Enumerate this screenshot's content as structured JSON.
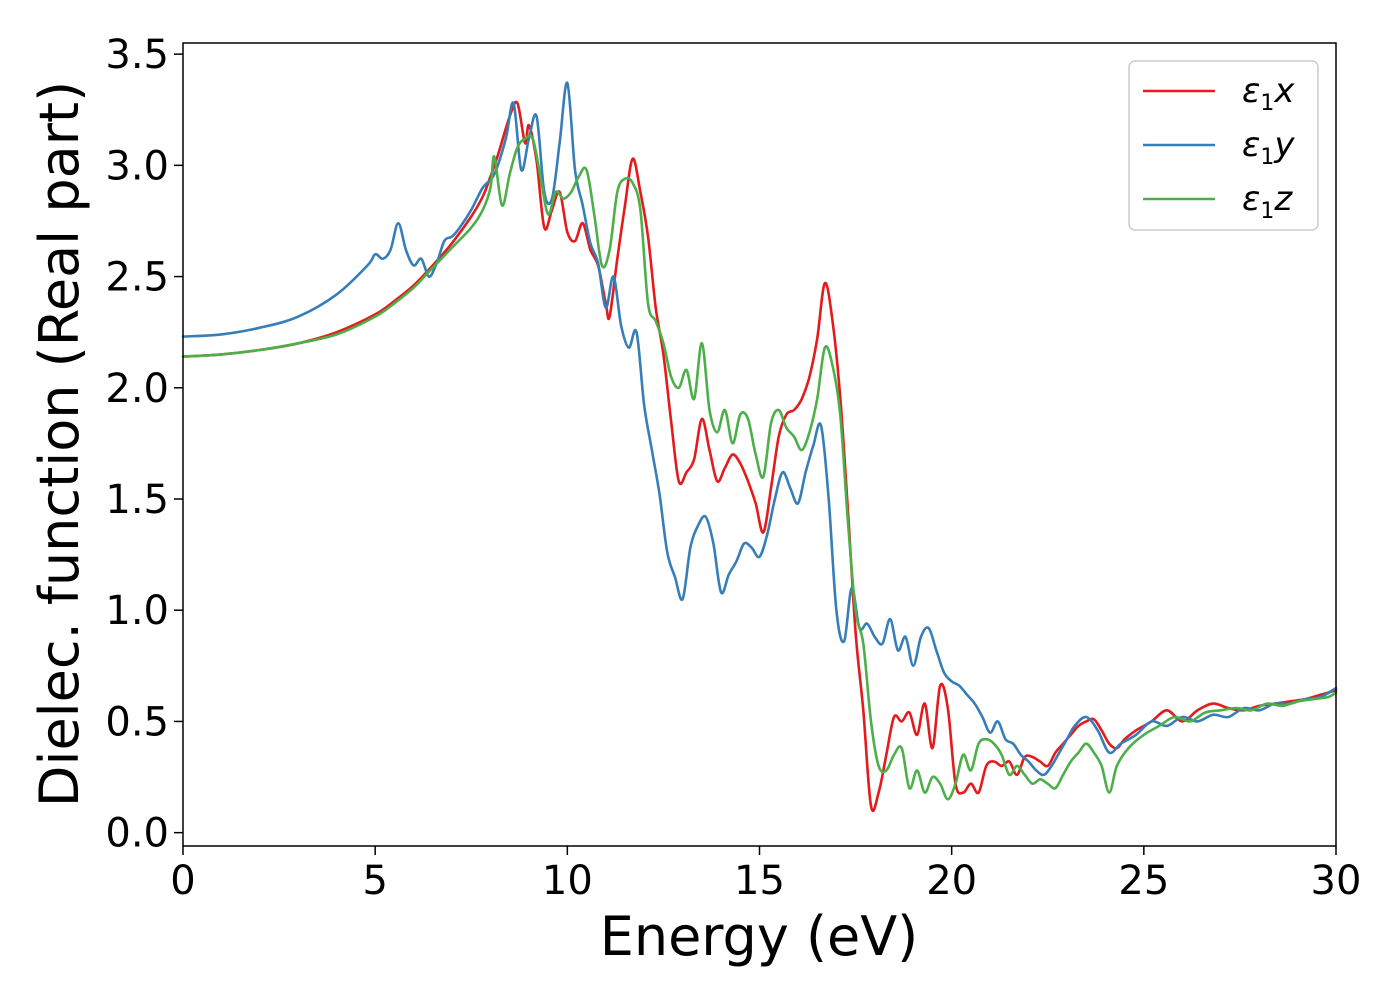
{
  "chart_data": {
    "type": "line",
    "title": "",
    "xlabel": "Energy (eV)",
    "ylabel": "Dielec. function (Real part)",
    "xlim": [
      0,
      30
    ],
    "ylim": [
      -0.06,
      3.55
    ],
    "xticks": [
      0,
      5,
      10,
      15,
      20,
      25,
      30
    ],
    "xtick_labels": [
      "0",
      "5",
      "10",
      "15",
      "20",
      "25",
      "30"
    ],
    "yticks": [
      0.0,
      0.5,
      1.0,
      1.5,
      2.0,
      2.5,
      3.0,
      3.5
    ],
    "ytick_labels": [
      "0.0",
      "0.5",
      "1.0",
      "1.5",
      "2.0",
      "2.5",
      "3.0",
      "3.5"
    ],
    "grid": false,
    "legend_position": "top-right",
    "series": [
      {
        "name": "x",
        "symbol": "ε",
        "subscript": "1",
        "color": "#e41a1c",
        "x": [
          0,
          1,
          2,
          3,
          4,
          5,
          5.5,
          6,
          6.5,
          7,
          7.5,
          7.8,
          8.0,
          8.2,
          8.5,
          8.7,
          8.9,
          9.0,
          9.2,
          9.4,
          9.6,
          9.8,
          10.0,
          10.2,
          10.4,
          10.6,
          10.8,
          11.0,
          11.1,
          11.3,
          11.5,
          11.7,
          11.9,
          12.1,
          12.3,
          12.5,
          12.7,
          12.9,
          13.1,
          13.3,
          13.5,
          13.7,
          13.9,
          14.1,
          14.3,
          14.5,
          14.7,
          14.9,
          15.1,
          15.3,
          15.5,
          15.7,
          15.9,
          16.1,
          16.3,
          16.5,
          16.7,
          16.9,
          17.1,
          17.3,
          17.5,
          17.7,
          17.9,
          18.1,
          18.3,
          18.5,
          18.7,
          18.9,
          19.1,
          19.3,
          19.5,
          19.7,
          19.9,
          20.1,
          20.3,
          20.5,
          20.7,
          20.9,
          21.1,
          21.3,
          21.5,
          21.7,
          21.9,
          22.1,
          22.3,
          22.5,
          22.7,
          22.9,
          23.1,
          23.3,
          23.5,
          23.7,
          23.9,
          24.1,
          24.3,
          24.5,
          24.8,
          25.2,
          25.6,
          26.0,
          26.4,
          26.8,
          27.2,
          27.6,
          28.0,
          28.4,
          28.8,
          29.2,
          29.6,
          30.0
        ],
        "y": [
          2.14,
          2.15,
          2.17,
          2.2,
          2.25,
          2.33,
          2.39,
          2.46,
          2.55,
          2.65,
          2.77,
          2.86,
          2.95,
          3.05,
          3.22,
          3.28,
          3.1,
          3.18,
          3.02,
          2.72,
          2.8,
          2.88,
          2.7,
          2.66,
          2.74,
          2.62,
          2.55,
          2.38,
          2.32,
          2.58,
          2.82,
          3.03,
          2.88,
          2.68,
          2.36,
          2.15,
          1.85,
          1.58,
          1.62,
          1.68,
          1.86,
          1.72,
          1.58,
          1.64,
          1.7,
          1.66,
          1.58,
          1.48,
          1.35,
          1.55,
          1.78,
          1.88,
          1.9,
          1.95,
          2.05,
          2.22,
          2.47,
          2.3,
          1.96,
          1.45,
          0.9,
          0.55,
          0.12,
          0.18,
          0.35,
          0.52,
          0.5,
          0.54,
          0.44,
          0.58,
          0.38,
          0.66,
          0.56,
          0.22,
          0.18,
          0.22,
          0.18,
          0.3,
          0.32,
          0.3,
          0.32,
          0.26,
          0.34,
          0.34,
          0.32,
          0.3,
          0.36,
          0.4,
          0.44,
          0.48,
          0.5,
          0.51,
          0.46,
          0.4,
          0.38,
          0.42,
          0.46,
          0.5,
          0.55,
          0.5,
          0.55,
          0.58,
          0.56,
          0.55,
          0.57,
          0.58,
          0.59,
          0.6,
          0.62,
          0.64
        ]
      },
      {
        "name": "y",
        "symbol": "ε",
        "subscript": "1",
        "color": "#377eb8",
        "x": [
          0,
          1,
          2,
          3,
          4,
          4.8,
          5.0,
          5.2,
          5.4,
          5.6,
          5.8,
          6.0,
          6.2,
          6.4,
          6.6,
          6.8,
          7.0,
          7.2,
          7.5,
          7.8,
          8.1,
          8.4,
          8.6,
          8.8,
          9.0,
          9.2,
          9.4,
          9.6,
          9.8,
          10.0,
          10.2,
          10.4,
          10.6,
          10.8,
          11.0,
          11.2,
          11.4,
          11.6,
          11.8,
          12.0,
          12.2,
          12.4,
          12.6,
          12.8,
          13.0,
          13.2,
          13.4,
          13.6,
          13.8,
          14.0,
          14.2,
          14.4,
          14.6,
          14.8,
          15.0,
          15.2,
          15.4,
          15.6,
          15.8,
          16.0,
          16.2,
          16.4,
          16.6,
          16.8,
          17.0,
          17.2,
          17.4,
          17.6,
          17.8,
          18.0,
          18.2,
          18.4,
          18.6,
          18.8,
          19.0,
          19.2,
          19.4,
          19.6,
          19.8,
          20.0,
          20.2,
          20.4,
          20.6,
          20.8,
          21.0,
          21.2,
          21.4,
          21.6,
          21.8,
          22.0,
          22.2,
          22.4,
          22.6,
          22.8,
          23.0,
          23.2,
          23.5,
          23.8,
          24.1,
          24.4,
          24.8,
          25.2,
          25.6,
          26.0,
          26.4,
          26.8,
          27.2,
          27.6,
          28.0,
          28.4,
          28.8,
          29.2,
          29.6,
          30.0
        ],
        "y": [
          2.23,
          2.24,
          2.27,
          2.32,
          2.42,
          2.55,
          2.6,
          2.58,
          2.62,
          2.74,
          2.62,
          2.55,
          2.58,
          2.5,
          2.56,
          2.66,
          2.68,
          2.72,
          2.8,
          2.9,
          2.96,
          3.12,
          3.28,
          2.98,
          3.12,
          3.22,
          2.88,
          2.85,
          3.1,
          3.37,
          2.98,
          2.82,
          2.65,
          2.56,
          2.36,
          2.5,
          2.28,
          2.18,
          2.25,
          1.92,
          1.72,
          1.52,
          1.26,
          1.15,
          1.05,
          1.28,
          1.38,
          1.42,
          1.3,
          1.08,
          1.16,
          1.22,
          1.3,
          1.28,
          1.24,
          1.34,
          1.5,
          1.62,
          1.55,
          1.48,
          1.62,
          1.74,
          1.83,
          1.5,
          1.0,
          0.86,
          1.1,
          0.92,
          0.94,
          0.88,
          0.85,
          0.96,
          0.82,
          0.88,
          0.75,
          0.88,
          0.92,
          0.82,
          0.72,
          0.68,
          0.66,
          0.62,
          0.58,
          0.52,
          0.45,
          0.5,
          0.42,
          0.4,
          0.35,
          0.32,
          0.28,
          0.26,
          0.3,
          0.36,
          0.42,
          0.48,
          0.52,
          0.46,
          0.36,
          0.4,
          0.44,
          0.5,
          0.48,
          0.52,
          0.5,
          0.53,
          0.52,
          0.56,
          0.55,
          0.58,
          0.58,
          0.6,
          0.61,
          0.65
        ]
      },
      {
        "name": "z",
        "symbol": "ε",
        "subscript": "1",
        "color": "#4daf4a",
        "x": [
          0,
          1,
          2,
          3,
          4,
          5,
          5.5,
          6,
          6.5,
          7,
          7.5,
          7.8,
          8.0,
          8.1,
          8.3,
          8.5,
          8.7,
          8.9,
          9.1,
          9.3,
          9.5,
          9.7,
          9.9,
          10.1,
          10.3,
          10.5,
          10.7,
          10.9,
          11.1,
          11.3,
          11.5,
          11.7,
          11.9,
          12.1,
          12.3,
          12.5,
          12.7,
          12.9,
          13.1,
          13.3,
          13.5,
          13.7,
          13.9,
          14.1,
          14.3,
          14.5,
          14.7,
          14.9,
          15.1,
          15.3,
          15.5,
          15.7,
          15.9,
          16.1,
          16.3,
          16.5,
          16.7,
          16.9,
          17.1,
          17.3,
          17.5,
          17.7,
          17.9,
          18.1,
          18.3,
          18.5,
          18.7,
          18.9,
          19.1,
          19.3,
          19.5,
          19.7,
          19.9,
          20.1,
          20.3,
          20.5,
          20.7,
          20.9,
          21.1,
          21.3,
          21.5,
          21.7,
          21.9,
          22.1,
          22.3,
          22.5,
          22.7,
          22.9,
          23.1,
          23.3,
          23.5,
          23.7,
          23.9,
          24.1,
          24.3,
          24.6,
          25.0,
          25.4,
          25.8,
          26.2,
          26.6,
          27.0,
          27.4,
          27.8,
          28.2,
          28.6,
          29.0,
          29.4,
          29.8,
          30.0
        ],
        "y": [
          2.14,
          2.15,
          2.17,
          2.2,
          2.24,
          2.32,
          2.38,
          2.45,
          2.54,
          2.63,
          2.72,
          2.8,
          2.9,
          3.04,
          2.82,
          2.96,
          3.08,
          3.12,
          3.12,
          2.95,
          2.78,
          2.88,
          2.85,
          2.88,
          2.95,
          2.98,
          2.78,
          2.55,
          2.62,
          2.88,
          2.94,
          2.92,
          2.8,
          2.38,
          2.3,
          2.2,
          2.05,
          2.0,
          2.08,
          1.95,
          2.2,
          1.9,
          1.8,
          1.9,
          1.75,
          1.88,
          1.86,
          1.7,
          1.6,
          1.84,
          1.9,
          1.82,
          1.78,
          1.72,
          1.8,
          1.95,
          2.18,
          2.1,
          1.88,
          1.4,
          1.0,
          0.85,
          0.5,
          0.3,
          0.28,
          0.35,
          0.38,
          0.2,
          0.28,
          0.18,
          0.25,
          0.22,
          0.15,
          0.22,
          0.35,
          0.28,
          0.4,
          0.42,
          0.4,
          0.35,
          0.26,
          0.3,
          0.26,
          0.22,
          0.24,
          0.22,
          0.2,
          0.26,
          0.32,
          0.36,
          0.4,
          0.36,
          0.3,
          0.18,
          0.3,
          0.38,
          0.44,
          0.48,
          0.52,
          0.5,
          0.54,
          0.55,
          0.56,
          0.55,
          0.58,
          0.57,
          0.59,
          0.6,
          0.61,
          0.63
        ]
      }
    ]
  }
}
